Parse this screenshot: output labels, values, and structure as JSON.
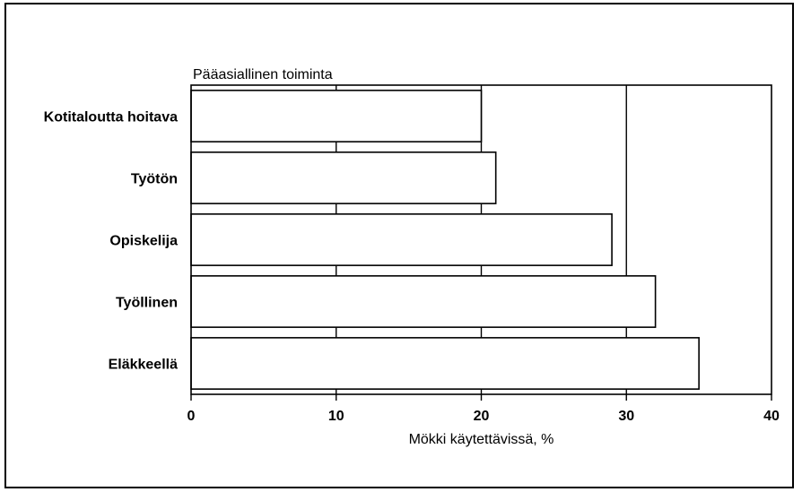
{
  "chart_data": {
    "type": "bar",
    "orientation": "horizontal",
    "ytitle": "Pääasiallinen toiminta",
    "xlabel": "Mökki käytettävissä, %",
    "categories": [
      "Kotitaloutta hoitava",
      "Työtön",
      "Opiskelija",
      "Työllinen",
      "Eläkkeellä"
    ],
    "values": [
      20,
      21,
      29,
      32,
      35
    ],
    "xlim": [
      0,
      40
    ],
    "xticks": [
      "0",
      "10",
      "20",
      "30",
      "40"
    ],
    "grid": true,
    "bar_fill": "#ffffff",
    "line_color": "#000000"
  }
}
